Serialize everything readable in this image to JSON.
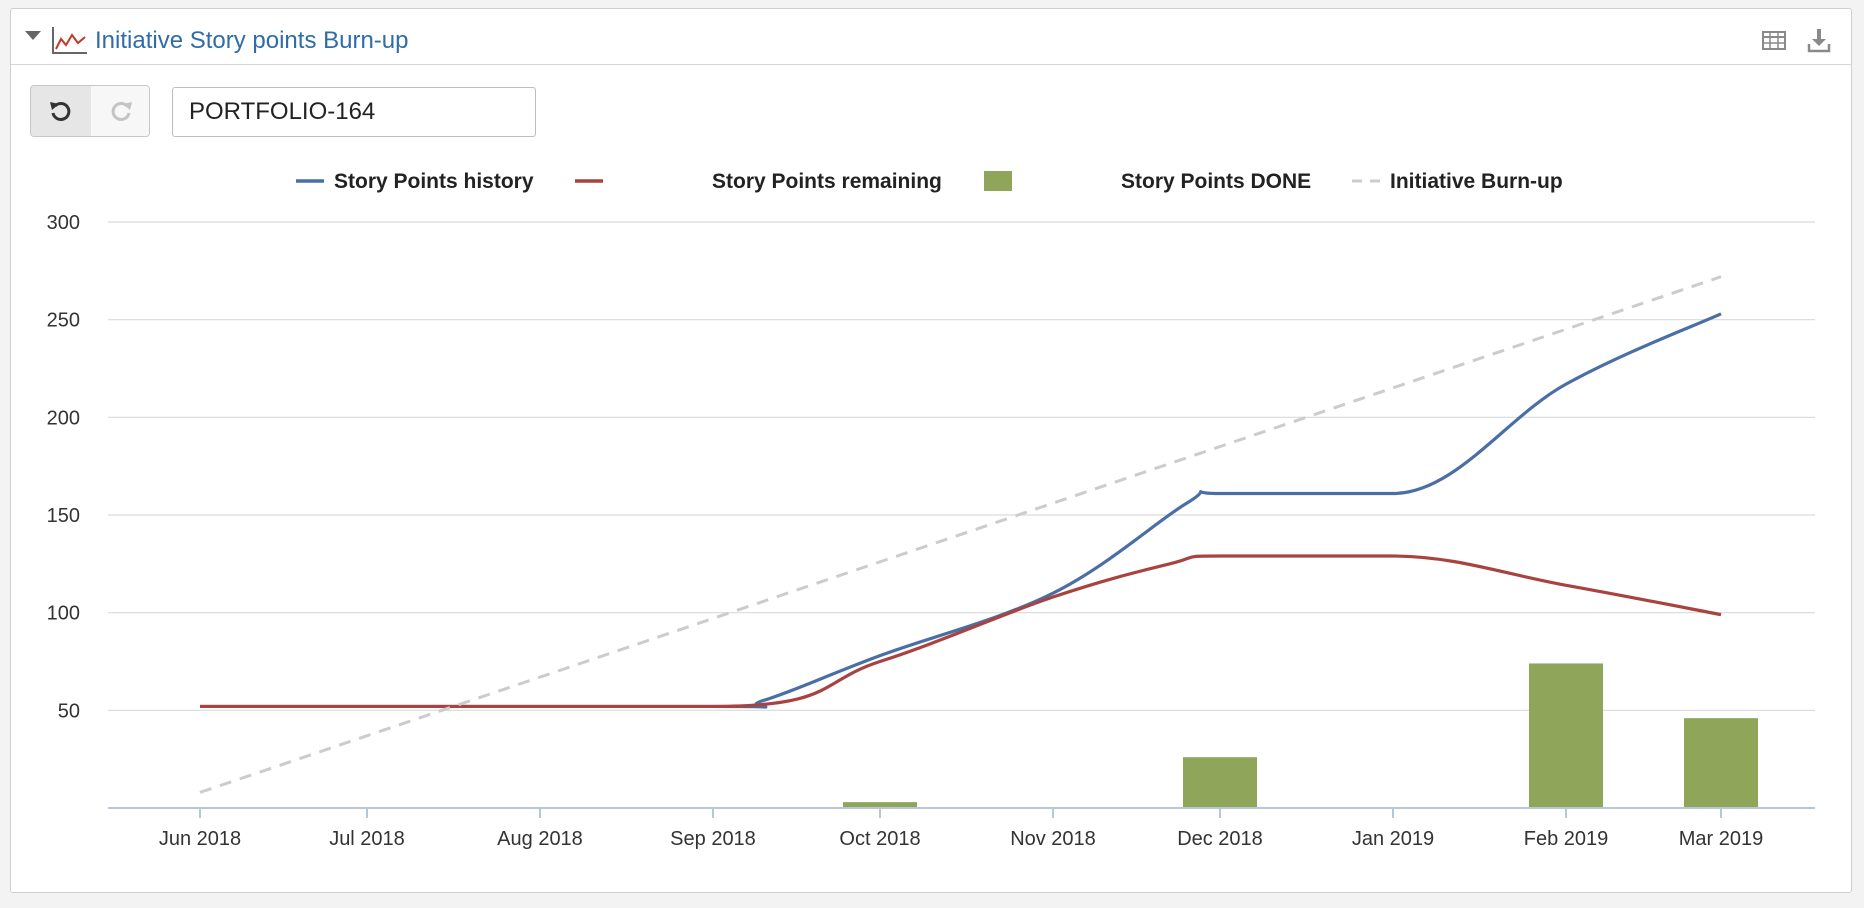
{
  "header": {
    "title": "Initiative Story points Burn-up",
    "icons": [
      "collapse-triangle",
      "line-chart-icon",
      "table-icon",
      "download-icon"
    ]
  },
  "toolbar": {
    "undo_icon": "undo-icon",
    "redo_icon": "redo-icon",
    "issue_key": "PORTFOLIO-164"
  },
  "chart_data": {
    "type": "line",
    "title": "",
    "xlabel": "",
    "ylabel": "",
    "x_ticks": [
      "Jun 2018",
      "Jul 2018",
      "Aug 2018",
      "Sep 2018",
      "Oct 2018",
      "Nov 2018",
      "Dec 2018",
      "Jan 2019",
      "Feb 2019",
      "Mar 2019"
    ],
    "y_ticks": [
      50,
      100,
      150,
      200,
      250,
      300
    ],
    "ylim": [
      0,
      300
    ],
    "grid": true,
    "legend_position": "top",
    "series": [
      {
        "name": "Story Points history",
        "type": "line",
        "color": "#4a6fa5",
        "points": [
          [
            "Jun 2018",
            52
          ],
          [
            "Sep 2018",
            52
          ],
          [
            "Sep 2018 + 0.3",
            55
          ],
          [
            "Oct 2018",
            78
          ],
          [
            "Nov 2018",
            110
          ],
          [
            "Dec 2018 - 0.2",
            156
          ],
          [
            "Dec 2018",
            161
          ],
          [
            "Jan 2019",
            161
          ],
          [
            "Feb 2019",
            217
          ],
          [
            "Mar 2019",
            253
          ]
        ]
      },
      {
        "name": "Story Points remaining",
        "type": "line",
        "color": "#a8433f",
        "points": [
          [
            "Jun 2018",
            52
          ],
          [
            "Sep 2018",
            52
          ],
          [
            "Oct 2018",
            75
          ],
          [
            "Nov 2018",
            108
          ],
          [
            "Dec 2018 - 0.3",
            125
          ],
          [
            "Dec 2018",
            129
          ],
          [
            "Jan 2019",
            129
          ],
          [
            "Feb 2019",
            114
          ],
          [
            "Mar 2019",
            99
          ]
        ]
      },
      {
        "name": "Story Points DONE",
        "type": "bar",
        "color": "#8fa65a",
        "points": [
          [
            "Oct 2018",
            3
          ],
          [
            "Dec 2018",
            26
          ],
          [
            "Feb 2019",
            74
          ],
          [
            "Mar 2019",
            46
          ]
        ]
      },
      {
        "name": "Initiative Burn-up",
        "type": "dashed-line",
        "color": "#cccccc",
        "points": [
          [
            "Jun 2018",
            8
          ],
          [
            "Mar 2019",
            272
          ]
        ]
      }
    ]
  }
}
